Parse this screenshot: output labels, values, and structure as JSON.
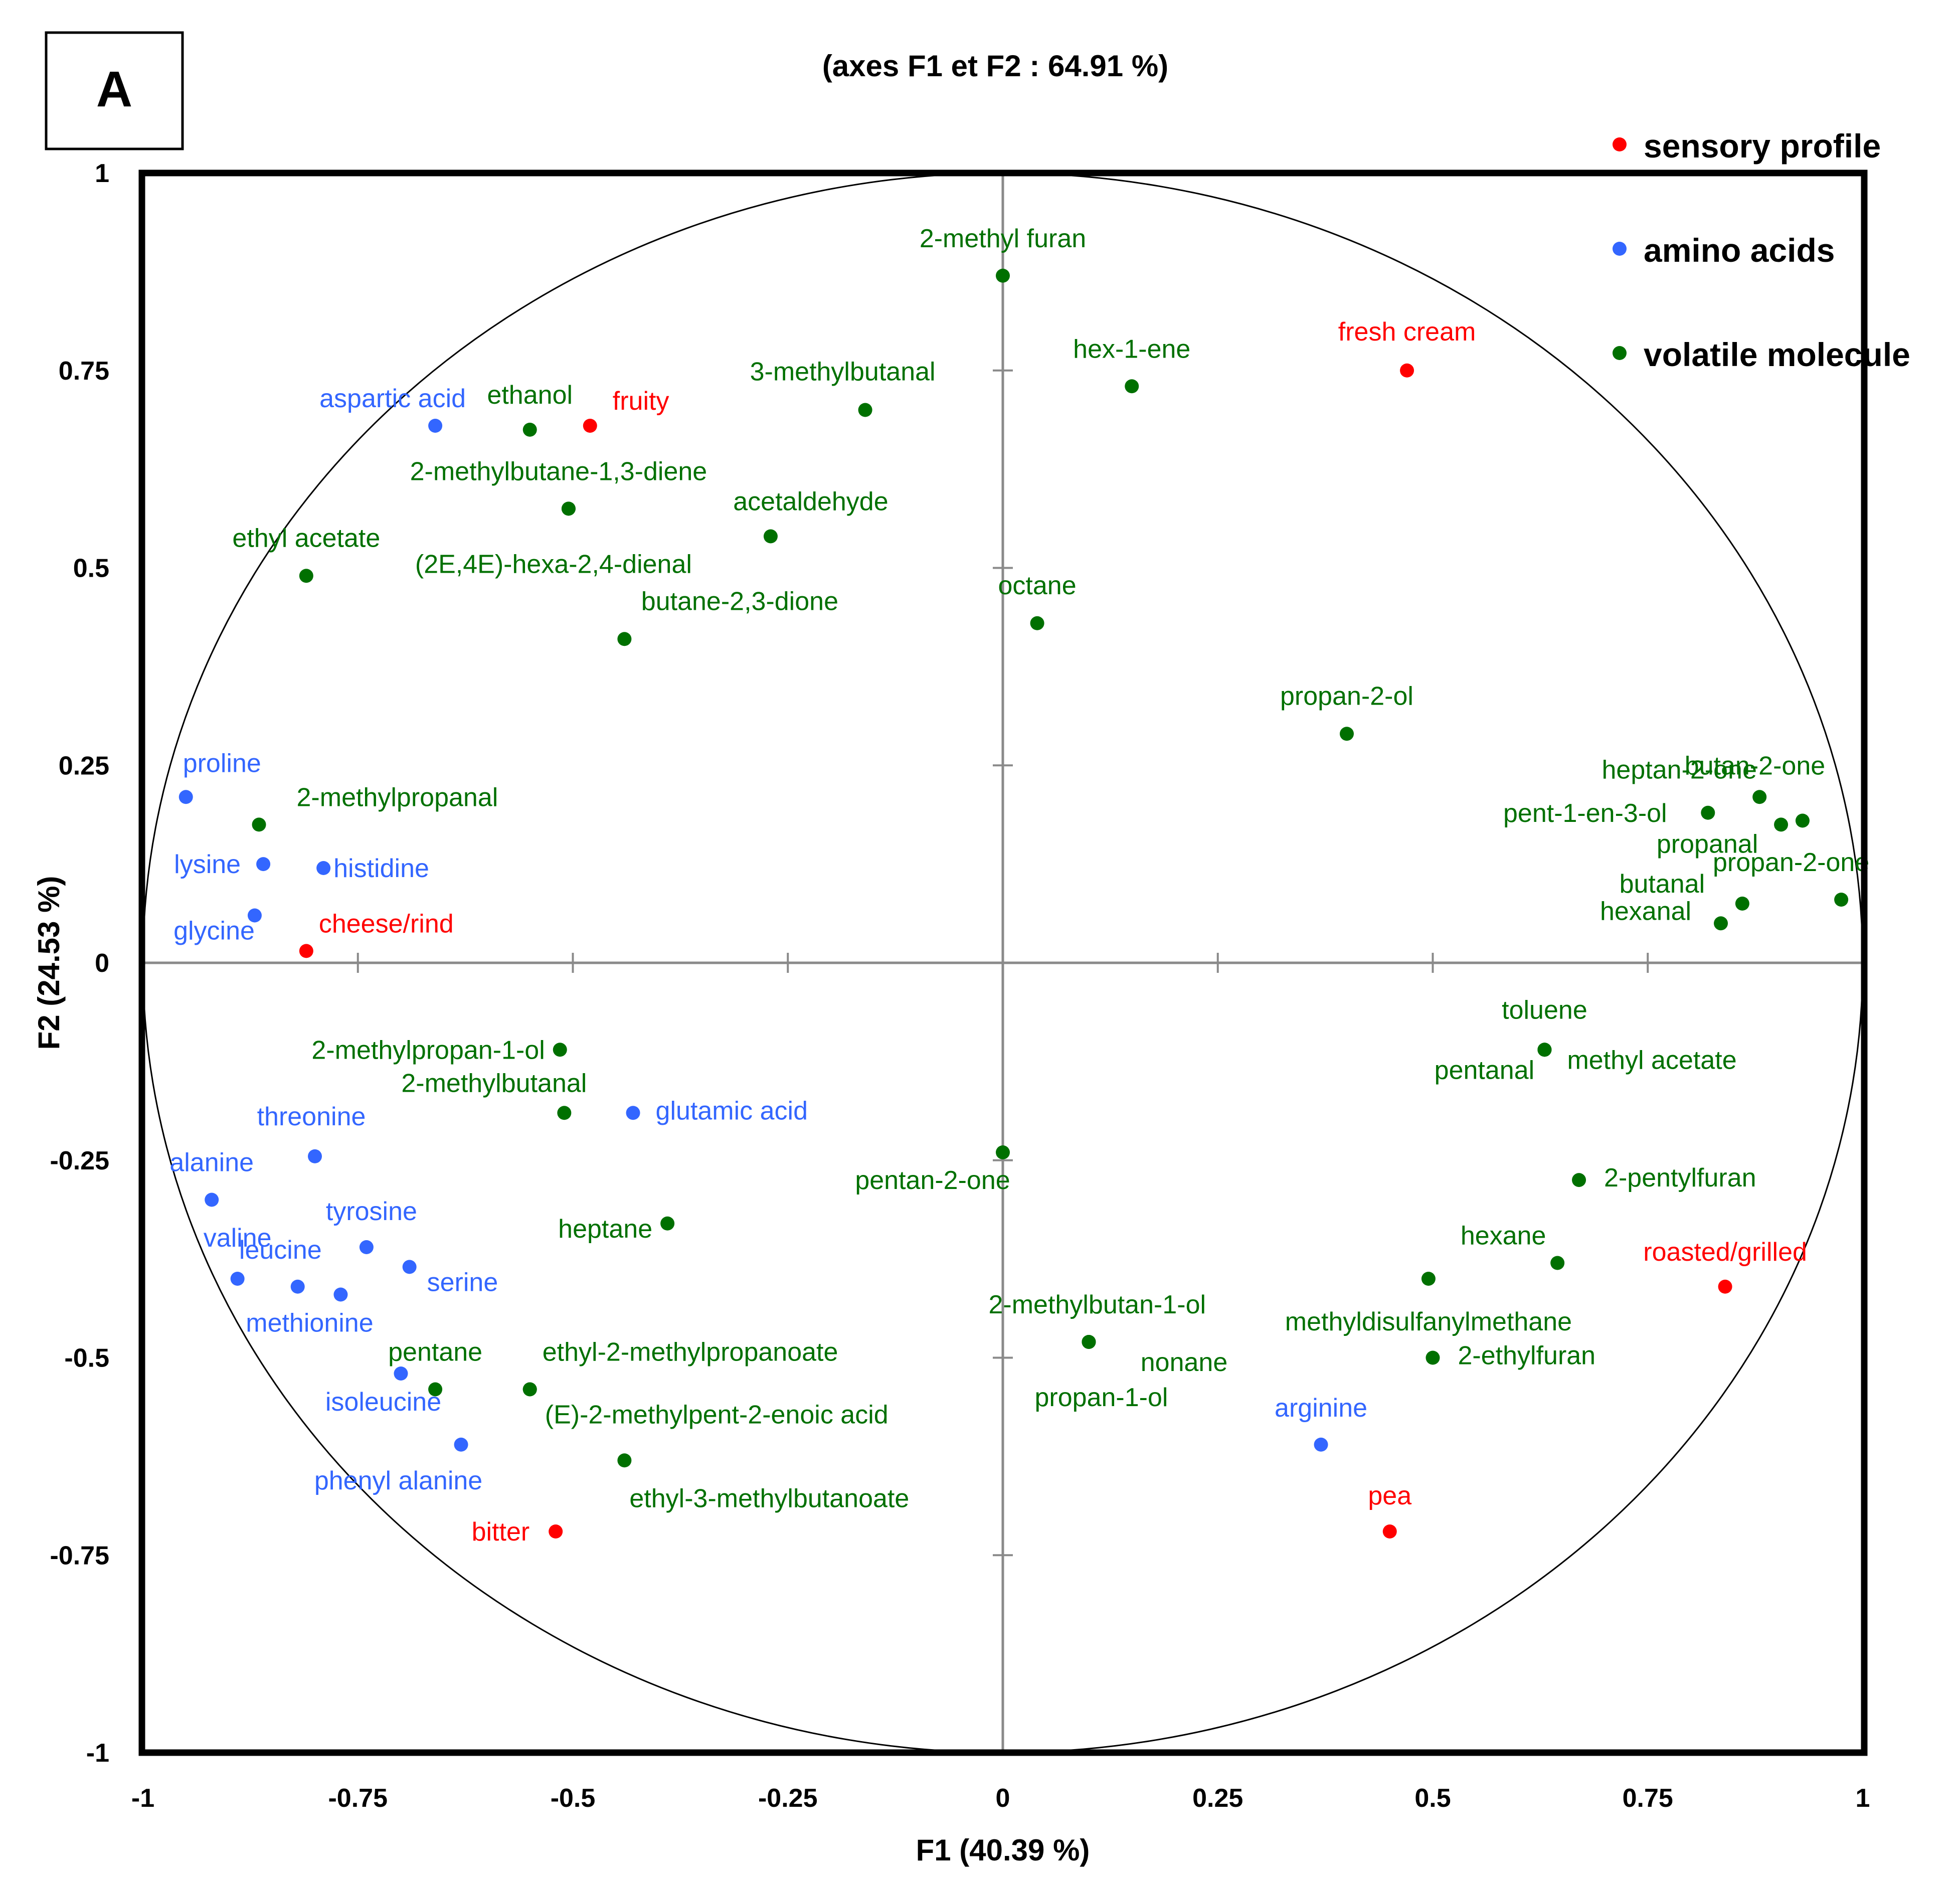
{
  "panel_label": "A",
  "chart_data": {
    "type": "scatter",
    "title": "(axes F1 et F2 : 64.91 %)",
    "xlabel": "F1 (40.39 %)",
    "ylabel": "F2 (24.53 %)",
    "xlim": [
      -1,
      1
    ],
    "ylim": [
      -1,
      1
    ],
    "xticks": [
      -1,
      -0.75,
      -0.5,
      -0.25,
      0,
      0.25,
      0.5,
      0.75,
      1
    ],
    "yticks": [
      1,
      0.75,
      0.5,
      0.25,
      0,
      -0.25,
      -0.5,
      -0.75,
      -1
    ],
    "xtick_labels": [
      "-1",
      "-0.75",
      "-0.5",
      "-0.25",
      "0",
      "0.25",
      "0.5",
      "0.75",
      "1"
    ],
    "ytick_labels": [
      "1",
      "0.75",
      "0.5",
      "0.25",
      "0",
      "-0.25",
      "-0.5",
      "-0.75",
      "-1"
    ],
    "correlation_circle": true,
    "legend_position": "top-right",
    "series": [
      {
        "name": "sensory profile",
        "color": "#ff0000",
        "points": [
          {
            "label": "fruity",
            "x": -0.48,
            "y": 0.68
          },
          {
            "label": "fresh cream",
            "x": 0.47,
            "y": 0.75
          },
          {
            "label": "cheese/rind",
            "x": -0.81,
            "y": 0.015
          },
          {
            "label": "roasted/grilled",
            "x": 0.84,
            "y": -0.41
          },
          {
            "label": "pea",
            "x": 0.45,
            "y": -0.72
          },
          {
            "label": "bitter",
            "x": -0.52,
            "y": -0.72
          }
        ]
      },
      {
        "name": "amino acids",
        "color": "#3366ff",
        "points": [
          {
            "label": "aspartic acid",
            "x": -0.66,
            "y": 0.68
          },
          {
            "label": "proline",
            "x": -0.95,
            "y": 0.21
          },
          {
            "label": "lysine",
            "x": -0.86,
            "y": 0.125
          },
          {
            "label": "histidine",
            "x": -0.79,
            "y": 0.12
          },
          {
            "label": "glycine",
            "x": -0.87,
            "y": 0.06
          },
          {
            "label": "glutamic acid",
            "x": -0.43,
            "y": -0.19
          },
          {
            "label": "threonine",
            "x": -0.8,
            "y": -0.245
          },
          {
            "label": "alanine",
            "x": -0.92,
            "y": -0.3
          },
          {
            "label": "tyrosine",
            "x": -0.74,
            "y": -0.36
          },
          {
            "label": "serine",
            "x": -0.69,
            "y": -0.385
          },
          {
            "label": "valine",
            "x": -0.89,
            "y": -0.4
          },
          {
            "label": "leucine",
            "x": -0.82,
            "y": -0.41
          },
          {
            "label": "methionine",
            "x": -0.77,
            "y": -0.42
          },
          {
            "label": "isoleucine",
            "x": -0.7,
            "y": -0.52
          },
          {
            "label": "phenyl alanine",
            "x": -0.63,
            "y": -0.61
          },
          {
            "label": "arginine",
            "x": 0.37,
            "y": -0.61
          }
        ]
      },
      {
        "name": "volatile molecule",
        "color": "#007000",
        "points": [
          {
            "label": "2-methyl furan",
            "x": 0.0,
            "y": 0.87
          },
          {
            "label": "hex-1-ene",
            "x": 0.15,
            "y": 0.73
          },
          {
            "label": "ethanol",
            "x": -0.55,
            "y": 0.675
          },
          {
            "label": "3-methylbutanal",
            "x": -0.16,
            "y": 0.7
          },
          {
            "label": "2-methylbutane-1,3-diene",
            "x": -0.505,
            "y": 0.575
          },
          {
            "label": "acetaldehyde",
            "x": -0.27,
            "y": 0.54
          },
          {
            "label": "(2E,4E)-hexa-2,4-dienal",
            "x": -0.505,
            "y": 0.575
          },
          {
            "label": "ethyl acetate",
            "x": -0.81,
            "y": 0.49
          },
          {
            "label": "butane-2,3-dione",
            "x": -0.44,
            "y": 0.41
          },
          {
            "label": "octane",
            "x": 0.04,
            "y": 0.43
          },
          {
            "label": "propan-2-ol",
            "x": 0.4,
            "y": 0.29
          },
          {
            "label": "butan-2-one",
            "x": 0.93,
            "y": 0.18
          },
          {
            "label": "heptan-2-one",
            "x": 0.88,
            "y": 0.21
          },
          {
            "label": "pent-1-en-3-ol",
            "x": 0.82,
            "y": 0.19
          },
          {
            "label": "propanal",
            "x": 0.905,
            "y": 0.175
          },
          {
            "label": "propan-2-one",
            "x": 0.975,
            "y": 0.08
          },
          {
            "label": "butanal",
            "x": 0.86,
            "y": 0.075
          },
          {
            "label": "hexanal",
            "x": 0.835,
            "y": 0.05
          },
          {
            "label": "2-methylpropanal",
            "x": -0.865,
            "y": 0.175
          },
          {
            "label": "toluene",
            "x": 0.63,
            "y": -0.11
          },
          {
            "label": "pentanal",
            "x": 0.63,
            "y": -0.11
          },
          {
            "label": "methyl acetate",
            "x": 0.63,
            "y": -0.11
          },
          {
            "label": "2-methylpropan-1-ol",
            "x": -0.515,
            "y": -0.11
          },
          {
            "label": "2-methylbutanal",
            "x": -0.51,
            "y": -0.19
          },
          {
            "label": "pentan-2-one",
            "x": 0.0,
            "y": -0.24
          },
          {
            "label": "heptane",
            "x": -0.39,
            "y": -0.33
          },
          {
            "label": "2-pentylfuran",
            "x": 0.67,
            "y": -0.275
          },
          {
            "label": "hexane",
            "x": 0.645,
            "y": -0.38
          },
          {
            "label": "methyldisulfanylmethane",
            "x": 0.495,
            "y": -0.4
          },
          {
            "label": "2-ethylfuran",
            "x": 0.5,
            "y": -0.5
          },
          {
            "label": "2-methylbutan-1-ol",
            "x": 0.1,
            "y": -0.48
          },
          {
            "label": "nonane",
            "x": 0.1,
            "y": -0.48
          },
          {
            "label": "propan-1-ol",
            "x": 0.1,
            "y": -0.48
          },
          {
            "label": "pentane",
            "x": -0.66,
            "y": -0.54
          },
          {
            "label": "ethyl-2-methylpropanoate",
            "x": -0.55,
            "y": -0.54
          },
          {
            "label": "(E)-2-methylpent-2-enoic acid",
            "x": -0.55,
            "y": -0.54
          },
          {
            "label": "ethyl-3-methylbutanoate",
            "x": -0.44,
            "y": -0.63
          }
        ]
      }
    ]
  }
}
